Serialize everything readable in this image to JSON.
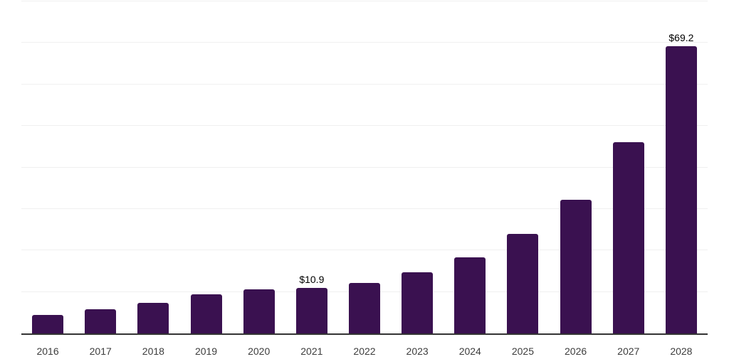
{
  "chart_data": {
    "type": "bar",
    "title": "",
    "xlabel": "",
    "ylabel": "",
    "categories": [
      "2016",
      "2017",
      "2018",
      "2019",
      "2020",
      "2021",
      "2022",
      "2023",
      "2024",
      "2025",
      "2026",
      "2027",
      "2028"
    ],
    "values": [
      4.5,
      5.8,
      7.4,
      9.5,
      10.7,
      10.9,
      12.2,
      14.8,
      18.3,
      23.9,
      32.2,
      46.0,
      69.2
    ],
    "data_labels": [
      "",
      "",
      "",
      "",
      "",
      "$10.9",
      "",
      "",
      "",
      "",
      "",
      "",
      "$69.2"
    ],
    "ylim": [
      0,
      80
    ],
    "gridline_step": 10,
    "grid": "horizontal-only",
    "y_tick_labels_visible": false,
    "legend_position": "none"
  },
  "colors": {
    "bar": "#3a1150",
    "gridline": "#f0f0f0",
    "axis_line": "#333333",
    "tick_label": "#3d3d3d",
    "data_label": "#000000",
    "background": "#ffffff"
  }
}
